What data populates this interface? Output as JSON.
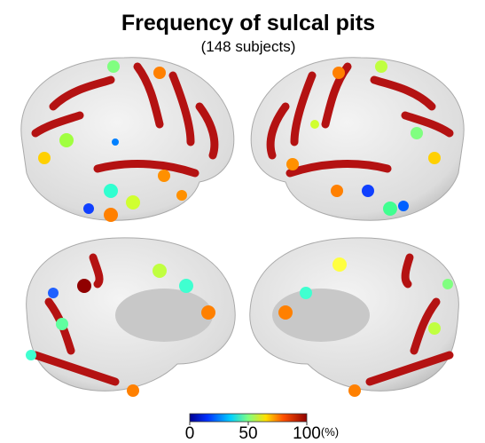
{
  "title": "Frequency of sulcal pits",
  "subtitle": "(148 subjects)",
  "colorbar": {
    "range": [
      0,
      100
    ],
    "ticks": [
      0,
      50,
      100
    ],
    "unit": "(%)"
  }
}
